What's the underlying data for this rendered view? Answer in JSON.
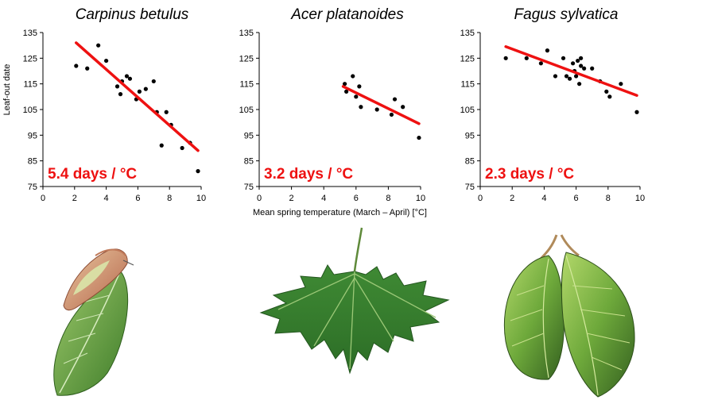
{
  "chart_data": [
    {
      "type": "scatter",
      "title": "Carpinus betulus",
      "annotation": "5.4 days / °C",
      "ylabel": "Leaf-out date",
      "xlabel": "",
      "xlim": [
        0,
        10
      ],
      "ylim": [
        75,
        135
      ],
      "xticks": [
        0,
        2,
        4,
        6,
        8,
        10
      ],
      "yticks": [
        75,
        85,
        95,
        105,
        115,
        125,
        135
      ],
      "grid": false,
      "points": [
        [
          2.1,
          122
        ],
        [
          2.8,
          121
        ],
        [
          3.5,
          130
        ],
        [
          4.0,
          124
        ],
        [
          4.7,
          114
        ],
        [
          4.9,
          111
        ],
        [
          5.0,
          116
        ],
        [
          5.3,
          118
        ],
        [
          5.5,
          117
        ],
        [
          5.9,
          109
        ],
        [
          6.1,
          112
        ],
        [
          6.5,
          113
        ],
        [
          7.0,
          116
        ],
        [
          7.2,
          104
        ],
        [
          7.5,
          91
        ],
        [
          7.8,
          104
        ],
        [
          8.1,
          99
        ],
        [
          8.8,
          90
        ],
        [
          9.3,
          92
        ],
        [
          9.8,
          81
        ]
      ],
      "trend": {
        "x": [
          2.1,
          9.8
        ],
        "y": [
          131,
          89
        ]
      },
      "colors": {
        "points": "#000000",
        "trend": "#ee1111",
        "annotation": "#ee1111"
      }
    },
    {
      "type": "scatter",
      "title": "Acer platanoides",
      "annotation": "3.2 days / °C",
      "ylabel": "",
      "xlabel": "Mean spring temperature (March – April) [°C]",
      "xlim": [
        0,
        10
      ],
      "ylim": [
        75,
        135
      ],
      "xticks": [
        0,
        2,
        4,
        6,
        8,
        10
      ],
      "yticks": [
        75,
        85,
        95,
        105,
        115,
        125,
        135
      ],
      "grid": false,
      "points": [
        [
          5.3,
          115
        ],
        [
          5.4,
          112
        ],
        [
          5.8,
          118
        ],
        [
          6.0,
          110
        ],
        [
          6.2,
          114
        ],
        [
          6.3,
          106
        ],
        [
          7.3,
          105
        ],
        [
          8.2,
          103
        ],
        [
          8.4,
          109
        ],
        [
          8.9,
          106
        ],
        [
          9.9,
          94
        ]
      ],
      "trend": {
        "x": [
          5.2,
          9.9
        ],
        "y": [
          114,
          99.5
        ]
      },
      "colors": {
        "points": "#000000",
        "trend": "#ee1111",
        "annotation": "#ee1111"
      }
    },
    {
      "type": "scatter",
      "title": "Fagus sylvatica",
      "annotation": "2.3 days / °C",
      "ylabel": "",
      "xlabel": "",
      "xlim": [
        0,
        10
      ],
      "ylim": [
        75,
        135
      ],
      "xticks": [
        0,
        2,
        4,
        6,
        8,
        10
      ],
      "yticks": [
        75,
        85,
        95,
        105,
        115,
        125,
        135
      ],
      "grid": false,
      "points": [
        [
          1.6,
          125
        ],
        [
          2.9,
          125
        ],
        [
          3.8,
          123
        ],
        [
          4.2,
          128
        ],
        [
          4.7,
          118
        ],
        [
          5.2,
          125
        ],
        [
          5.4,
          118
        ],
        [
          5.6,
          117
        ],
        [
          5.8,
          123
        ],
        [
          5.9,
          120
        ],
        [
          6.0,
          118
        ],
        [
          6.1,
          124
        ],
        [
          6.2,
          115
        ],
        [
          6.3,
          125
        ],
        [
          6.3,
          122
        ],
        [
          6.5,
          121
        ],
        [
          7.0,
          121
        ],
        [
          7.5,
          116
        ],
        [
          7.9,
          112
        ],
        [
          8.1,
          110
        ],
        [
          8.8,
          115
        ],
        [
          9.8,
          104
        ]
      ],
      "trend": {
        "x": [
          1.6,
          9.8
        ],
        "y": [
          129.5,
          110.5
        ]
      },
      "colors": {
        "points": "#000000",
        "trend": "#ee1111",
        "annotation": "#ee1111"
      }
    }
  ],
  "leaves": [
    {
      "species": "carpinus",
      "shape": "leaf-bud-icon"
    },
    {
      "species": "acer",
      "shape": "maple-leaf-icon"
    },
    {
      "species": "fagus",
      "shape": "beech-leaf-icon"
    }
  ]
}
